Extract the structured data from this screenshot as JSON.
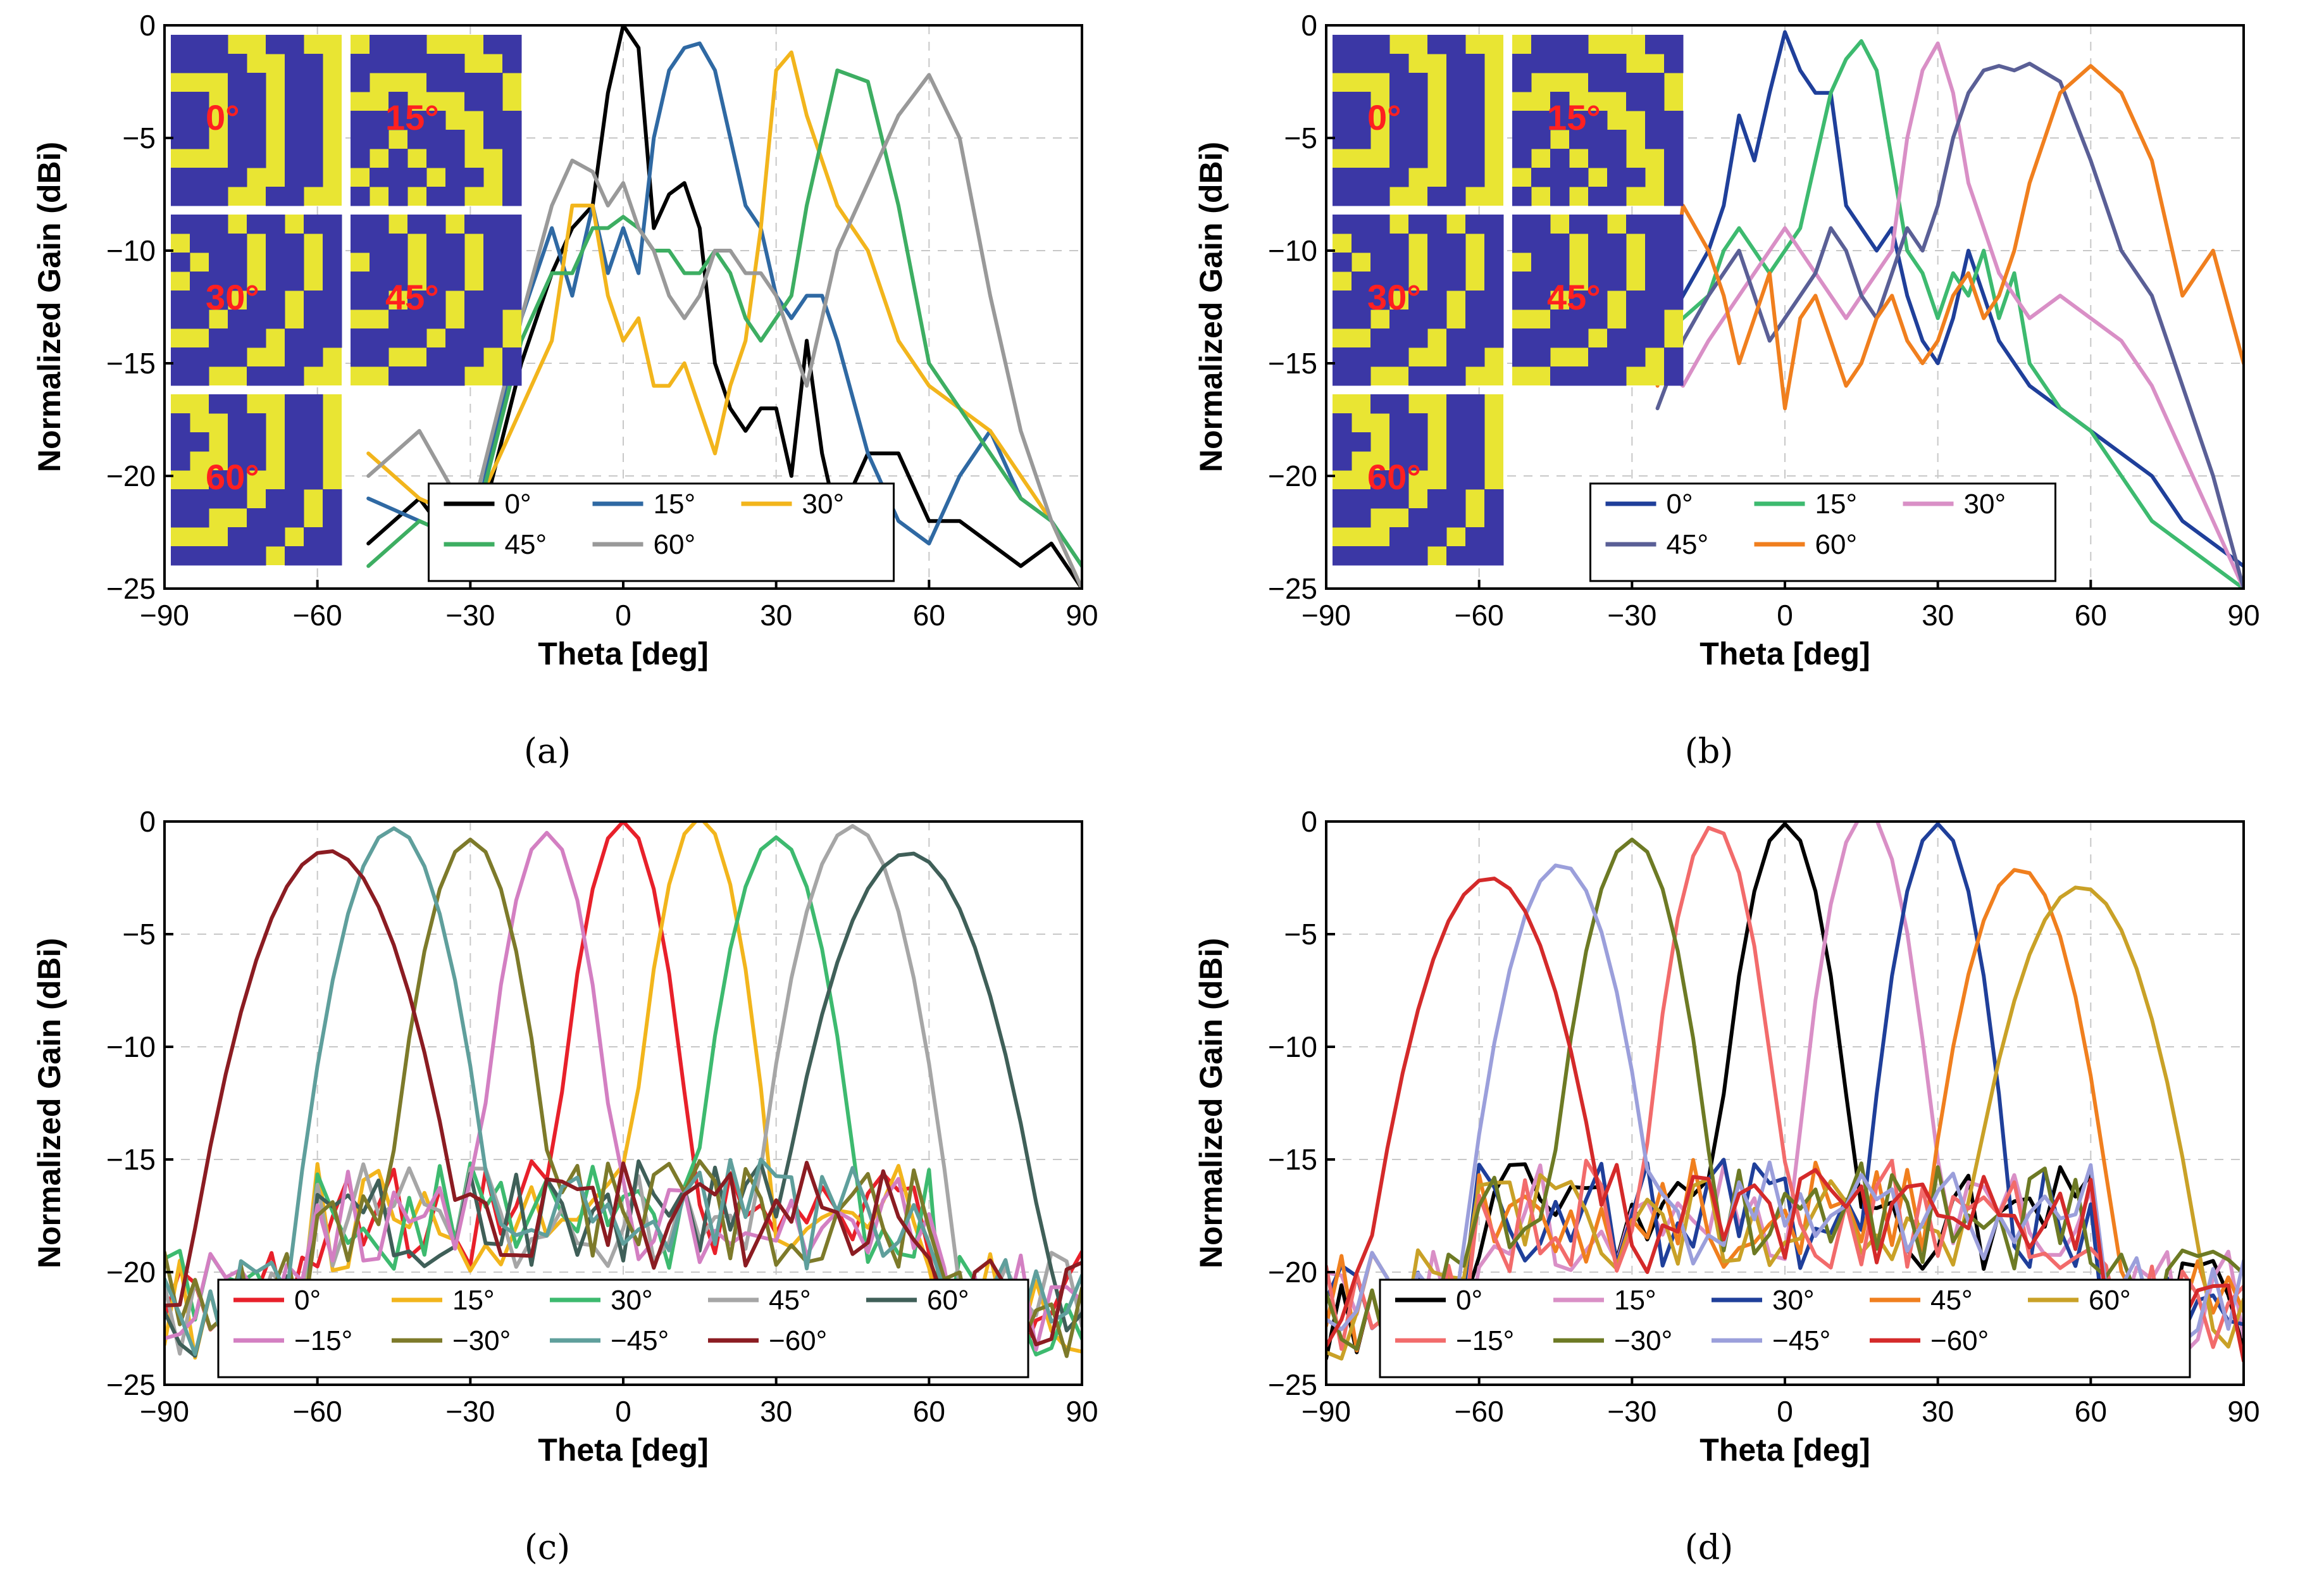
{
  "chart_data": [
    {
      "id": "a",
      "type": "line",
      "caption": "(a)",
      "xlabel": "Theta [deg]",
      "ylabel": "Normalized Gain (dBi)",
      "xlim": [
        -90,
        90
      ],
      "ylim": [
        -25,
        0
      ],
      "xticks": [
        -90,
        -60,
        -30,
        0,
        30,
        60,
        90
      ],
      "xtick_labels": [
        "−90",
        "−60",
        "−30",
        "0",
        "30",
        "60",
        "90"
      ],
      "yticks": [
        0,
        -5,
        -10,
        -15,
        -20,
        -25
      ],
      "ytick_labels": [
        "0",
        "−5",
        "−10",
        "−15",
        "−20",
        "−25"
      ],
      "grid": true,
      "legend_position": "bottom-center",
      "legend_columns": 3,
      "insets": {
        "position": "top-left",
        "labels": [
          "0°",
          "15°",
          "30°",
          "45°",
          "60°"
        ]
      },
      "series": [
        {
          "name": "0°",
          "color": "#000000",
          "x": [
            -50,
            -40,
            -30,
            -20,
            -14,
            -10,
            -6,
            -3,
            0,
            3,
            6,
            9,
            12,
            15,
            18,
            21,
            24,
            27,
            30,
            33,
            36,
            39,
            42,
            48,
            54,
            60,
            66,
            72,
            78,
            84,
            90
          ],
          "y": [
            -23,
            -21,
            -24,
            -15,
            -11,
            -9,
            -8,
            -3,
            0,
            -1,
            -9,
            -7.5,
            -7,
            -9,
            -15,
            -17,
            -18,
            -17,
            -17,
            -20,
            -14,
            -19,
            -22,
            -19,
            -19,
            -22,
            -22,
            -23,
            -24,
            -23,
            -25
          ]
        },
        {
          "name": "15°",
          "color": "#2f69a3",
          "x": [
            -50,
            -40,
            -30,
            -20,
            -14,
            -10,
            -6,
            -3,
            0,
            3,
            6,
            9,
            12,
            15,
            18,
            21,
            24,
            27,
            30,
            33,
            36,
            39,
            42,
            48,
            54,
            60,
            66,
            72,
            78,
            84,
            90
          ],
          "y": [
            -21,
            -22,
            -23,
            -13,
            -9,
            -12,
            -8,
            -11,
            -9,
            -11,
            -5,
            -2,
            -1,
            -0.8,
            -2,
            -5,
            -8,
            -9,
            -12,
            -13,
            -12,
            -12,
            -14,
            -19,
            -22,
            -23,
            -20,
            -18,
            -21,
            -22,
            -24
          ]
        },
        {
          "name": "30°",
          "color": "#f2b51c",
          "x": [
            -50,
            -40,
            -30,
            -20,
            -14,
            -10,
            -6,
            -3,
            0,
            3,
            6,
            9,
            12,
            15,
            18,
            21,
            24,
            27,
            30,
            33,
            36,
            39,
            42,
            48,
            54,
            60,
            66,
            72,
            78,
            84,
            90
          ],
          "y": [
            -19,
            -21,
            -22,
            -17,
            -14,
            -8,
            -8,
            -12,
            -14,
            -13,
            -16,
            -16,
            -15,
            -17,
            -19,
            -16,
            -14,
            -9,
            -2,
            -1.2,
            -4,
            -6,
            -8,
            -10,
            -14,
            -16,
            -17,
            -18,
            -20,
            -22,
            -25
          ]
        },
        {
          "name": "45°",
          "color": "#3dae62",
          "x": [
            -50,
            -40,
            -30,
            -20,
            -14,
            -10,
            -6,
            -3,
            0,
            3,
            6,
            9,
            12,
            15,
            18,
            21,
            24,
            27,
            30,
            33,
            36,
            39,
            42,
            48,
            54,
            60,
            66,
            72,
            78,
            84,
            90
          ],
          "y": [
            -24,
            -22,
            -23,
            -14,
            -11,
            -11,
            -9,
            -9,
            -8.5,
            -9,
            -10,
            -10,
            -11,
            -11,
            -10,
            -11,
            -13,
            -14,
            -13,
            -12,
            -8,
            -5,
            -2,
            -2.5,
            -8,
            -15,
            -17,
            -19,
            -21,
            -22,
            -24
          ]
        },
        {
          "name": "60°",
          "color": "#999999",
          "x": [
            -50,
            -40,
            -30,
            -20,
            -14,
            -10,
            -6,
            -3,
            0,
            3,
            6,
            9,
            12,
            15,
            18,
            21,
            24,
            27,
            30,
            33,
            36,
            39,
            42,
            48,
            54,
            60,
            66,
            72,
            78,
            84,
            90
          ],
          "y": [
            -20,
            -18,
            -22,
            -13,
            -8,
            -6,
            -6.5,
            -8,
            -7,
            -9,
            -10,
            -12,
            -13,
            -12,
            -10,
            -10,
            -11,
            -11,
            -12,
            -14,
            -16,
            -13,
            -10,
            -7,
            -4,
            -2.2,
            -5,
            -12,
            -18,
            -22,
            -25
          ]
        }
      ]
    },
    {
      "id": "b",
      "type": "line",
      "caption": "(b)",
      "xlabel": "Theta [deg]",
      "ylabel": "Normalized Gain (dBi)",
      "xlim": [
        -90,
        90
      ],
      "ylim": [
        -25,
        0
      ],
      "xticks": [
        -90,
        -60,
        -30,
        0,
        30,
        60,
        90
      ],
      "xtick_labels": [
        "−90",
        "−60",
        "−30",
        "0",
        "30",
        "60",
        "90"
      ],
      "yticks": [
        0,
        -5,
        -10,
        -15,
        -20,
        -25
      ],
      "ytick_labels": [
        "0",
        "−5",
        "−10",
        "−15",
        "−20",
        "−25"
      ],
      "grid": true,
      "legend_position": "bottom-center",
      "legend_columns": 3,
      "insets": {
        "position": "top-left",
        "labels": [
          "0°",
          "15°",
          "30°",
          "45°",
          "60°"
        ]
      },
      "series": [
        {
          "name": "0°",
          "color": "#1f3f9a",
          "x": [
            -25,
            -20,
            -15,
            -12,
            -9,
            -6,
            -3,
            0,
            3,
            6,
            9,
            12,
            15,
            18,
            21,
            24,
            27,
            30,
            33,
            36,
            39,
            42,
            45,
            48,
            54,
            60,
            66,
            72,
            78,
            84,
            90
          ],
          "y": [
            -14,
            -12,
            -10,
            -8,
            -4,
            -6,
            -3,
            -0.3,
            -2,
            -3,
            -3,
            -8,
            -9,
            -10,
            -9,
            -12,
            -14,
            -15,
            -13,
            -10,
            -12,
            -14,
            -15,
            -16,
            -17,
            -18,
            -19,
            -20,
            -22,
            -23,
            -24
          ]
        },
        {
          "name": "15°",
          "color": "#3dba6f",
          "x": [
            -25,
            -20,
            -15,
            -12,
            -9,
            -6,
            -3,
            0,
            3,
            6,
            9,
            12,
            15,
            18,
            21,
            24,
            27,
            30,
            33,
            36,
            39,
            42,
            45,
            48,
            54,
            60,
            66,
            72,
            78,
            84,
            90
          ],
          "y": [
            -14,
            -13,
            -12,
            -10,
            -9,
            -10,
            -11,
            -10,
            -9,
            -6,
            -3,
            -1.5,
            -0.7,
            -2,
            -6,
            -10,
            -11,
            -13,
            -11,
            -12,
            -10,
            -13,
            -11,
            -15,
            -17,
            -18,
            -20,
            -22,
            -23,
            -24,
            -25
          ]
        },
        {
          "name": "30°",
          "color": "#d98fc6",
          "x": [
            -25,
            -20,
            -15,
            -12,
            -9,
            -6,
            -3,
            0,
            3,
            6,
            9,
            12,
            15,
            18,
            21,
            24,
            27,
            30,
            33,
            36,
            39,
            42,
            45,
            48,
            54,
            60,
            66,
            72,
            78,
            84,
            90
          ],
          "y": [
            -15,
            -16,
            -14,
            -13,
            -12,
            -11,
            -10,
            -9,
            -10,
            -11,
            -12,
            -13,
            -12,
            -11,
            -10,
            -5,
            -2,
            -0.8,
            -3,
            -7,
            -9,
            -11,
            -12,
            -13,
            -12,
            -13,
            -14,
            -16,
            -19,
            -22,
            -25
          ]
        },
        {
          "name": "45°",
          "color": "#5a5f96",
          "x": [
            -25,
            -20,
            -15,
            -12,
            -9,
            -6,
            -3,
            0,
            3,
            6,
            9,
            12,
            15,
            18,
            21,
            24,
            27,
            30,
            33,
            36,
            39,
            42,
            45,
            48,
            54,
            60,
            66,
            72,
            78,
            84,
            90
          ],
          "y": [
            -17,
            -14,
            -12,
            -11,
            -10,
            -12,
            -14,
            -13,
            -12,
            -11,
            -9,
            -10,
            -12,
            -13,
            -11,
            -9,
            -10,
            -8,
            -5,
            -3,
            -2,
            -1.8,
            -2,
            -1.7,
            -2.5,
            -6,
            -10,
            -12,
            -16,
            -20,
            -25
          ]
        },
        {
          "name": "60°",
          "color": "#f07f1e",
          "x": [
            -25,
            -20,
            -15,
            -12,
            -9,
            -6,
            -3,
            0,
            3,
            6,
            9,
            12,
            15,
            18,
            21,
            24,
            27,
            30,
            33,
            36,
            39,
            42,
            45,
            48,
            54,
            60,
            66,
            72,
            78,
            84,
            90
          ],
          "y": [
            -16,
            -8,
            -10,
            -12,
            -15,
            -13,
            -11,
            -17,
            -13,
            -12,
            -14,
            -16,
            -15,
            -13,
            -12,
            -14,
            -15,
            -14,
            -12,
            -11,
            -13,
            -12,
            -10,
            -7,
            -3,
            -1.8,
            -3,
            -6,
            -12,
            -10,
            -15
          ]
        }
      ]
    },
    {
      "id": "c",
      "type": "line",
      "caption": "(c)",
      "xlabel": "Theta [deg]",
      "ylabel": "Normalized Gain (dBi)",
      "xlim": [
        -90,
        90
      ],
      "ylim": [
        -25,
        0
      ],
      "xticks": [
        -90,
        -60,
        -30,
        0,
        30,
        60,
        90
      ],
      "xtick_labels": [
        "−90",
        "−60",
        "−30",
        "0",
        "30",
        "60",
        "90"
      ],
      "yticks": [
        0,
        -5,
        -10,
        -15,
        -20,
        -25
      ],
      "ytick_labels": [
        "0",
        "−5",
        "−10",
        "−15",
        "−20",
        "−25"
      ],
      "grid": true,
      "legend_position": "bottom-center",
      "legend_columns": 5,
      "series": [
        {
          "name": "0°",
          "color": "#e8202a",
          "peak": 0,
          "peak_gain": 0,
          "width": 6
        },
        {
          "name": "15°",
          "color": "#f2b51c",
          "peak": 15,
          "peak_gain": 0.2,
          "width": 6
        },
        {
          "name": "30°",
          "color": "#3dba6f",
          "peak": 30,
          "peak_gain": -0.7,
          "width": 7
        },
        {
          "name": "45°",
          "color": "#a6a6a6",
          "peak": 45,
          "peak_gain": -0.2,
          "width": 8
        },
        {
          "name": "60°",
          "color": "#3f5f58",
          "peak": 56,
          "peak_gain": -1.4,
          "width": 11
        },
        {
          "name": "−15°",
          "color": "#d37fc2",
          "peak": -15,
          "peak_gain": -0.5,
          "width": 6
        },
        {
          "name": "−30°",
          "color": "#7d7a2a",
          "peak": -30,
          "peak_gain": -0.8,
          "width": 7
        },
        {
          "name": "−45°",
          "color": "#5f9f9c",
          "peak": -45,
          "peak_gain": -0.3,
          "width": 8
        },
        {
          "name": "−60°",
          "color": "#8b1c22",
          "peak": -58,
          "peak_gain": -1.3,
          "width": 11
        }
      ]
    },
    {
      "id": "d",
      "type": "line",
      "caption": "(d)",
      "xlabel": "Theta [deg]",
      "ylabel": "Normalized Gain (dBi)",
      "xlim": [
        -90,
        90
      ],
      "ylim": [
        -25,
        0
      ],
      "xticks": [
        -90,
        -60,
        -30,
        0,
        30,
        60,
        90
      ],
      "xtick_labels": [
        "−90",
        "−60",
        "−30",
        "0",
        "30",
        "60",
        "90"
      ],
      "yticks": [
        0,
        -5,
        -10,
        -15,
        -20,
        -25
      ],
      "ytick_labels": [
        "0",
        "−5",
        "−10",
        "−15",
        "−20",
        "−25"
      ],
      "grid": true,
      "legend_position": "bottom-center",
      "legend_columns": 5,
      "series": [
        {
          "name": "0°",
          "color": "#000000",
          "peak": 0,
          "peak_gain": -0.1,
          "width": 6
        },
        {
          "name": "15°",
          "color": "#d98fc6",
          "peak": 16,
          "peak_gain": 0.4,
          "width": 6
        },
        {
          "name": "30°",
          "color": "#1f3f9a",
          "peak": 30,
          "peak_gain": -0.1,
          "width": 6
        },
        {
          "name": "45°",
          "color": "#f07f1e",
          "peak": 46,
          "peak_gain": -2.1,
          "width": 8
        },
        {
          "name": "60°",
          "color": "#c9a127",
          "peak": 58,
          "peak_gain": -2.9,
          "width": 10
        },
        {
          "name": "−15°",
          "color": "#f26b6b",
          "peak": -14,
          "peak_gain": -0.2,
          "width": 6
        },
        {
          "name": "−30°",
          "color": "#6d7a24",
          "peak": -30,
          "peak_gain": -0.8,
          "width": 7
        },
        {
          "name": "−45°",
          "color": "#9b9fdb",
          "peak": -44,
          "peak_gain": -1.9,
          "width": 8
        },
        {
          "name": "−60°",
          "color": "#d42a2a",
          "peak": -58,
          "peak_gain": -2.5,
          "width": 10
        }
      ]
    }
  ]
}
